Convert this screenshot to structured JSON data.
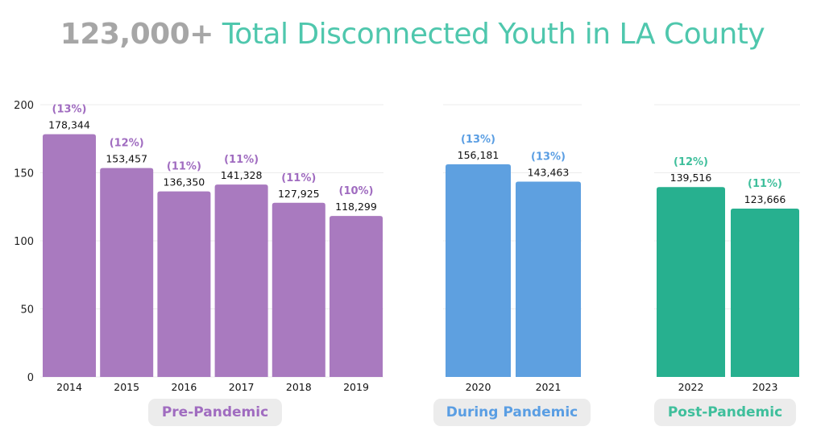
{
  "title": {
    "highlight": "123,000+",
    "rest": "Total Disconnected Youth in LA County"
  },
  "colors": {
    "pre": "#a97abf",
    "during": "#5ea0e0",
    "post": "#27b08f",
    "pre_pct": "#a06cc0",
    "during_pct": "#5a9ee3",
    "post_pct": "#3fbf9c",
    "title_grey": "#a6a6a6",
    "title_teal": "#4fc7ad"
  },
  "groups": {
    "pre": "Pre-Pandemic",
    "during": "During Pandemic",
    "post": "Post-Pandemic"
  },
  "chart_data": {
    "type": "bar",
    "title": "123,000+ Total Disconnected Youth in LA County",
    "xlabel": "",
    "ylabel": "",
    "ylim": [
      0,
      200
    ],
    "yticks": [
      "0",
      "50",
      "100",
      "150",
      "200"
    ],
    "grid": true,
    "categories": [
      "2014",
      "2015",
      "2016",
      "2017",
      "2018",
      "2019",
      "2020",
      "2021",
      "2022",
      "2023"
    ],
    "series": [
      {
        "name": "",
        "values": [
          178.344,
          153.457,
          136.35,
          141.328,
          127.925,
          118.299,
          156.181,
          143.463,
          139.516,
          123.666
        ],
        "value_labels": [
          "178,344",
          "153,457",
          "136,350",
          "141,328",
          "127,925",
          "118,299",
          "156,181",
          "143,463",
          "139,516",
          "123,666"
        ],
        "percent_labels": [
          "(13%)",
          "(12%)",
          "(11%)",
          "(11%)",
          "(11%)",
          "(10%)",
          "(13%)",
          "(13%)",
          "(12%)",
          "(11%)"
        ],
        "period": [
          "pre",
          "pre",
          "pre",
          "pre",
          "pre",
          "pre",
          "during",
          "during",
          "post",
          "post"
        ]
      }
    ]
  }
}
